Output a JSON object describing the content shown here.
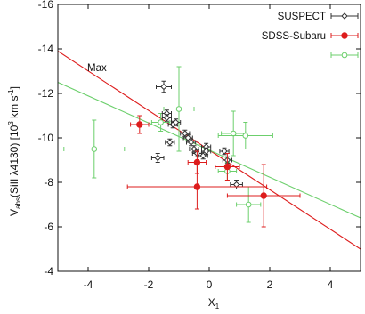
{
  "chart_data": {
    "type": "scatter",
    "xlabel": "X₁",
    "ylabel": "Vₐᵦₛ(SiII λ4130) [10³ km s⁻¹]",
    "ylabel_main": "V",
    "ylabel_sub": "abs",
    "ylabel_rest": "(SiII λ4130) [10",
    "ylabel_sup1": "3",
    "ylabel_mid": " km s",
    "ylabel_sup2": "-1",
    "ylabel_end": "]",
    "xlim": [
      -5,
      5
    ],
    "ylim": [
      -16,
      -4
    ],
    "y_reversed": true,
    "x_ticks": [
      "-4",
      "-2",
      "0",
      "2",
      "4"
    ],
    "x_tick_values": [
      -4,
      -2,
      0,
      2,
      4
    ],
    "y_ticks": [
      "-16",
      "-14",
      "-12",
      "-10",
      "-8",
      "-6",
      "-4"
    ],
    "y_tick_values": [
      -16,
      -14,
      -12,
      -10,
      -8,
      -6,
      -4
    ],
    "legend_position": "top-right",
    "annotation": "Max",
    "colors": {
      "suspect": "#333333",
      "sdss": "#dd1c1c",
      "green": "#6ccf6c"
    },
    "series": [
      {
        "name": "SUSPECT",
        "marker": "open-diamond",
        "color": "#333333",
        "points": [
          {
            "x": -1.5,
            "y": -12.3,
            "xerr": 0.25,
            "yerr": 0.25
          },
          {
            "x": -1.4,
            "y": -11.1,
            "xerr": 0.15,
            "yerr": 0.15
          },
          {
            "x": -1.4,
            "y": -10.9,
            "xerr": 0.15,
            "yerr": 0.15
          },
          {
            "x": -1.2,
            "y": -10.6,
            "xerr": 0.15,
            "yerr": 0.15
          },
          {
            "x": -1.1,
            "y": -10.7,
            "xerr": 0.15,
            "yerr": 0.15
          },
          {
            "x": -1.3,
            "y": -9.8,
            "xerr": 0.15,
            "yerr": 0.15
          },
          {
            "x": -1.7,
            "y": -9.1,
            "xerr": 0.2,
            "yerr": 0.2
          },
          {
            "x": -0.8,
            "y": -10.2,
            "xerr": 0.15,
            "yerr": 0.15
          },
          {
            "x": -0.7,
            "y": -10.0,
            "xerr": 0.15,
            "yerr": 0.15
          },
          {
            "x": -0.6,
            "y": -9.8,
            "xerr": 0.15,
            "yerr": 0.15
          },
          {
            "x": -0.5,
            "y": -9.5,
            "xerr": 0.15,
            "yerr": 0.15
          },
          {
            "x": -0.4,
            "y": -9.3,
            "xerr": 0.15,
            "yerr": 0.15
          },
          {
            "x": -0.2,
            "y": -9.2,
            "xerr": 0.15,
            "yerr": 0.15
          },
          {
            "x": -0.1,
            "y": -9.6,
            "xerr": 0.15,
            "yerr": 0.15
          },
          {
            "x": -0.1,
            "y": -9.4,
            "xerr": 0.15,
            "yerr": 0.15
          },
          {
            "x": 0.5,
            "y": -9.4,
            "xerr": 0.15,
            "yerr": 0.15
          },
          {
            "x": 0.6,
            "y": -9.0,
            "xerr": 0.15,
            "yerr": 0.15
          },
          {
            "x": 0.9,
            "y": -7.9,
            "xerr": 0.2,
            "yerr": 0.2
          }
        ]
      },
      {
        "name": "SDSS-Subaru",
        "marker": "filled-circle",
        "color": "#dd1c1c",
        "points": [
          {
            "x": -2.3,
            "y": -10.6,
            "xerr": 0.3,
            "yerr": 0.4
          },
          {
            "x": -0.4,
            "y": -8.9,
            "xerr": 0.3,
            "yerr": 0.5
          },
          {
            "x": -0.4,
            "y": -7.8,
            "xerr": 2.3,
            "yerr": 1.0
          },
          {
            "x": 0.6,
            "y": -8.7,
            "xerr": 0.4,
            "yerr": 0.6
          },
          {
            "x": 1.8,
            "y": -7.4,
            "xerr": 1.2,
            "yerr": 1.4
          }
        ]
      },
      {
        "name": "",
        "marker": "open-circle",
        "color": "#6ccf6c",
        "points": [
          {
            "x": -3.8,
            "y": -9.5,
            "xerr": 1.0,
            "yerr": 1.3
          },
          {
            "x": -1.6,
            "y": -10.7,
            "xerr": 0.3,
            "yerr": 0.4
          },
          {
            "x": -1.0,
            "y": -11.3,
            "xerr": 0.5,
            "yerr": 1.9
          },
          {
            "x": 0.8,
            "y": -10.2,
            "xerr": 0.4,
            "yerr": 1.0
          },
          {
            "x": 1.2,
            "y": -10.1,
            "xerr": 0.9,
            "yerr": 0.6
          },
          {
            "x": 1.3,
            "y": -7.0,
            "xerr": 0.4,
            "yerr": 0.8
          },
          {
            "x": 0.6,
            "y": -8.5,
            "xerr": 0.3,
            "yerr": 0.4
          }
        ]
      }
    ],
    "fit_lines": [
      {
        "color": "#dd1c1c",
        "x": [
          -5,
          5
        ],
        "y": [
          -13.9,
          -5.0
        ]
      },
      {
        "color": "#6ccf6c",
        "x": [
          -5,
          5
        ],
        "y": [
          -12.5,
          -6.4
        ]
      }
    ]
  }
}
